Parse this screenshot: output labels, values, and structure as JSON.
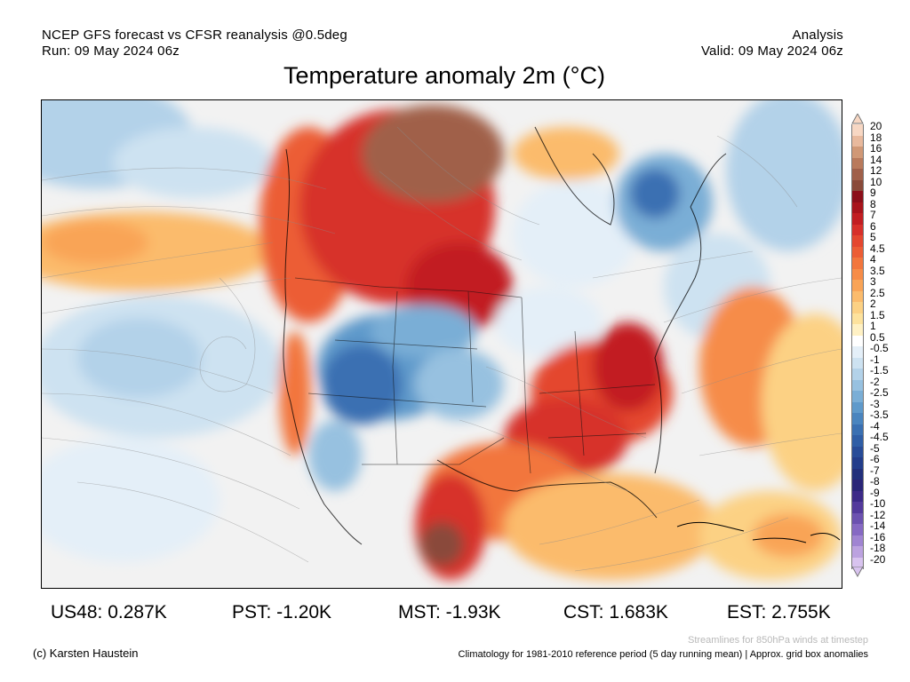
{
  "header": {
    "line1_left": "NCEP GFS forecast vs CFSR reanalysis @0.5deg",
    "line2_left": "Run: 09 May 2024 06z",
    "line1_right": "Analysis",
    "line2_right": "Valid: 09 May 2024 06z"
  },
  "title": "Temperature anomaly 2m (°C)",
  "colorbar": {
    "labels": [
      "20",
      "18",
      "16",
      "14",
      "12",
      "10",
      "9",
      "8",
      "7",
      "6",
      "5",
      "4.5",
      "4",
      "3.5",
      "3",
      "2.5",
      "2",
      "1.5",
      "1",
      "0.5",
      "-0.5",
      "-1",
      "-1.5",
      "-2",
      "-2.5",
      "-3",
      "-3.5",
      "-4",
      "-4.5",
      "-5",
      "-6",
      "-7",
      "-8",
      "-9",
      "-10",
      "-12",
      "-14",
      "-16",
      "-18",
      "-20"
    ],
    "colors": [
      "#f7d7c3",
      "#e8b99d",
      "#d09876",
      "#b97a5c",
      "#a0604a",
      "#8a4a3a",
      "#8c0f1a",
      "#a8141c",
      "#c21e22",
      "#d7302a",
      "#e4472f",
      "#ec5d35",
      "#f2763d",
      "#f68c48",
      "#f9a457",
      "#fbbb6c",
      "#fcd184",
      "#fde29d",
      "#fff1c4",
      "#ffffff",
      "#e4eff8",
      "#cde2f1",
      "#b3d2e9",
      "#97c1e0",
      "#7aaed6",
      "#5f9acb",
      "#4a85bf",
      "#3a70b2",
      "#2f5ea6",
      "#284c98",
      "#233d8b",
      "#22307c",
      "#2a2578",
      "#3c2a88",
      "#533a9c",
      "#6c52b0",
      "#8669c3",
      "#a084d2",
      "#bca2e0",
      "#d8c3ef"
    ]
  },
  "stats": [
    {
      "label": "US48: 0.287K"
    },
    {
      "label": "PST: -1.20K"
    },
    {
      "label": "MST: -1.93K"
    },
    {
      "label": "CST: 1.683K"
    },
    {
      "label": "EST: 2.755K"
    }
  ],
  "footer": {
    "streamline_note": "Streamlines for 850hPa winds at timestep",
    "copyright": "(c) Karsten Haustein",
    "climatology_note": "Climatology for 1981-2010 reference period (5 day running mean) | Approx. grid box anomalies"
  }
}
